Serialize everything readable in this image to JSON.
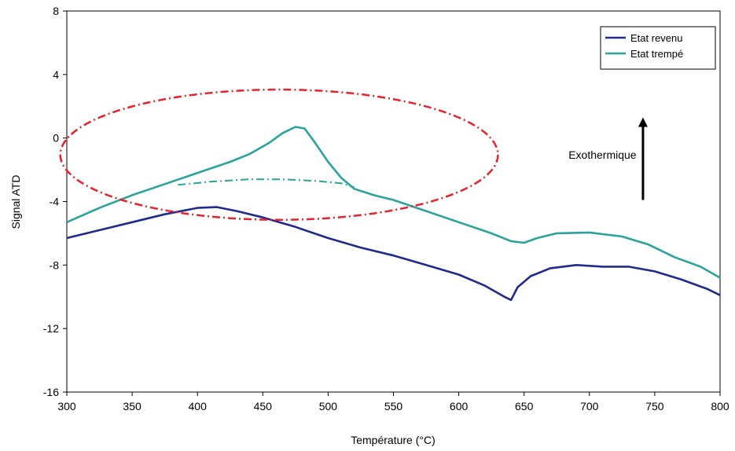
{
  "chart_data": {
    "type": "line",
    "xlabel": "Température (°C)",
    "ylabel": "Signal ATD",
    "xlim": [
      300,
      800
    ],
    "ylim": [
      -16,
      8
    ],
    "xticks": [
      "300",
      "350",
      "400",
      "450",
      "500",
      "550",
      "600",
      "650",
      "700",
      "750",
      "800"
    ],
    "yticks": [
      "8",
      "4",
      "0",
      "-4",
      "-8",
      "-12",
      "-16"
    ],
    "grid": false,
    "legend_position": "top-right",
    "series": [
      {
        "name": "Etat revenu",
        "color": "#1f2a8c",
        "style": "solid",
        "points": [
          [
            300,
            -6.3
          ],
          [
            325,
            -5.8
          ],
          [
            350,
            -5.3
          ],
          [
            375,
            -4.8
          ],
          [
            400,
            -4.4
          ],
          [
            415,
            -4.35
          ],
          [
            430,
            -4.6
          ],
          [
            450,
            -5.0
          ],
          [
            475,
            -5.6
          ],
          [
            500,
            -6.3
          ],
          [
            525,
            -6.9
          ],
          [
            550,
            -7.4
          ],
          [
            575,
            -8.0
          ],
          [
            600,
            -8.6
          ],
          [
            620,
            -9.3
          ],
          [
            635,
            -10.0
          ],
          [
            640,
            -10.2
          ],
          [
            645,
            -9.4
          ],
          [
            655,
            -8.7
          ],
          [
            670,
            -8.2
          ],
          [
            690,
            -8.0
          ],
          [
            710,
            -8.1
          ],
          [
            730,
            -8.1
          ],
          [
            750,
            -8.4
          ],
          [
            770,
            -8.9
          ],
          [
            790,
            -9.5
          ],
          [
            800,
            -9.9
          ]
        ]
      },
      {
        "name": "Etat trempé",
        "color": "#2aa39a",
        "style": "solid",
        "points": [
          [
            300,
            -5.3
          ],
          [
            325,
            -4.4
          ],
          [
            350,
            -3.6
          ],
          [
            375,
            -2.9
          ],
          [
            400,
            -2.2
          ],
          [
            425,
            -1.5
          ],
          [
            440,
            -1.0
          ],
          [
            455,
            -0.3
          ],
          [
            465,
            0.3
          ],
          [
            475,
            0.7
          ],
          [
            482,
            0.6
          ],
          [
            490,
            -0.3
          ],
          [
            500,
            -1.5
          ],
          [
            510,
            -2.5
          ],
          [
            520,
            -3.2
          ],
          [
            535,
            -3.6
          ],
          [
            550,
            -3.9
          ],
          [
            575,
            -4.6
          ],
          [
            600,
            -5.3
          ],
          [
            625,
            -6.0
          ],
          [
            640,
            -6.5
          ],
          [
            650,
            -6.6
          ],
          [
            660,
            -6.3
          ],
          [
            675,
            -6.0
          ],
          [
            700,
            -5.95
          ],
          [
            725,
            -6.2
          ],
          [
            745,
            -6.7
          ],
          [
            765,
            -7.5
          ],
          [
            785,
            -8.1
          ],
          [
            800,
            -8.8
          ]
        ]
      },
      {
        "name": "",
        "color": "#2aa39a",
        "style": "dash-dot",
        "points": [
          [
            385,
            -2.95
          ],
          [
            410,
            -2.75
          ],
          [
            440,
            -2.6
          ],
          [
            465,
            -2.6
          ],
          [
            490,
            -2.7
          ],
          [
            510,
            -2.85
          ],
          [
            520,
            -3.1
          ]
        ]
      }
    ],
    "annotations": [
      {
        "text": "Exothermique",
        "x": 710,
        "y": -1.3
      },
      {
        "type": "arrow",
        "color": "#000000",
        "from": [
          741,
          -3.9
        ],
        "to": [
          741,
          1.0
        ]
      },
      {
        "type": "ellipse",
        "color": "#e8212a",
        "style": "dash-dot",
        "cx": 462.5,
        "cy": -1.05,
        "rx": 167.5,
        "ry": 4.1
      }
    ]
  }
}
